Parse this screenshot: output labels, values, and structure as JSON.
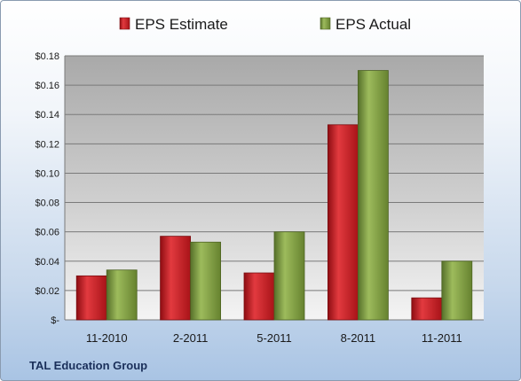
{
  "chart_data": {
    "type": "bar",
    "categories": [
      "11-2010",
      "2-2011",
      "5-2011",
      "8-2011",
      "11-2011"
    ],
    "series": [
      {
        "name": "EPS Estimate",
        "color": "#c8161d",
        "values": [
          0.03,
          0.057,
          0.032,
          0.133,
          0.015
        ]
      },
      {
        "name": "EPS Actual",
        "color": "#77933c",
        "values": [
          0.034,
          0.053,
          0.06,
          0.17,
          0.04
        ]
      }
    ],
    "ylim": [
      0,
      0.18
    ],
    "yticks": [
      0,
      0.02,
      0.04,
      0.06,
      0.08,
      0.1,
      0.12,
      0.14,
      0.16,
      0.18
    ],
    "ytick_labels": [
      "$-",
      "$0.02",
      "$0.04",
      "$0.06",
      "$0.08",
      "$0.10",
      "$0.12",
      "$0.14",
      "$0.16",
      "$0.18"
    ],
    "grid": true,
    "legend_position": "top",
    "footer": "TAL Education Group"
  }
}
